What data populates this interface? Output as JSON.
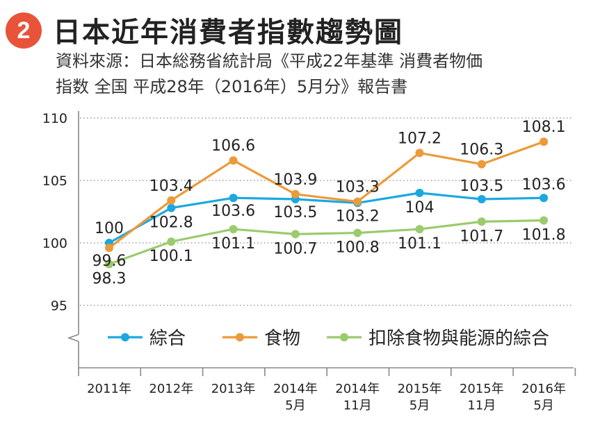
{
  "header": {
    "badge": "2",
    "title": "日本近年消費者指數趨勢圖",
    "source_line1": "資料來源：日本総務省統計局《平成22年基準 消費者物価",
    "source_line2": "指数 全国 平成28年（2016年）5月分》報告書"
  },
  "chart_data": {
    "type": "line",
    "categories": [
      [
        "2011年"
      ],
      [
        "2012年"
      ],
      [
        "2013年"
      ],
      [
        "2014年",
        "5月"
      ],
      [
        "2014年",
        "11月"
      ],
      [
        "2015年",
        "5月"
      ],
      [
        "2015年",
        "11月"
      ],
      [
        "2016年",
        "5月"
      ]
    ],
    "y_ticks": [
      95,
      100,
      105,
      110
    ],
    "ylim": [
      95,
      110
    ],
    "grid": "horizontal dotted",
    "legend_position": "bottom",
    "series": [
      {
        "name": "綜合",
        "color": "#1ba8e0",
        "values": [
          100,
          102.8,
          103.6,
          103.5,
          103.2,
          104,
          103.5,
          103.6
        ],
        "labels": [
          "100",
          "102.8",
          "103.6",
          "103.5",
          "103.2",
          "104",
          "103.5",
          "103.6"
        ]
      },
      {
        "name": "食物",
        "color": "#ec9a3a",
        "values": [
          99.6,
          103.4,
          106.6,
          103.9,
          103.3,
          107.2,
          106.3,
          108.1
        ],
        "labels": [
          "99.6",
          "103.4",
          "106.6",
          "103.9",
          "103.3",
          "107.2",
          "106.3",
          "108.1"
        ]
      },
      {
        "name": "扣除食物與能源的綜合",
        "color": "#9acb6c",
        "values": [
          98.3,
          100.1,
          101.1,
          100.7,
          100.8,
          101.1,
          101.7,
          101.8
        ],
        "labels": [
          "98.3",
          "100.1",
          "101.1",
          "100.7",
          "100.8",
          "101.1",
          "101.7",
          "101.8"
        ]
      }
    ]
  }
}
